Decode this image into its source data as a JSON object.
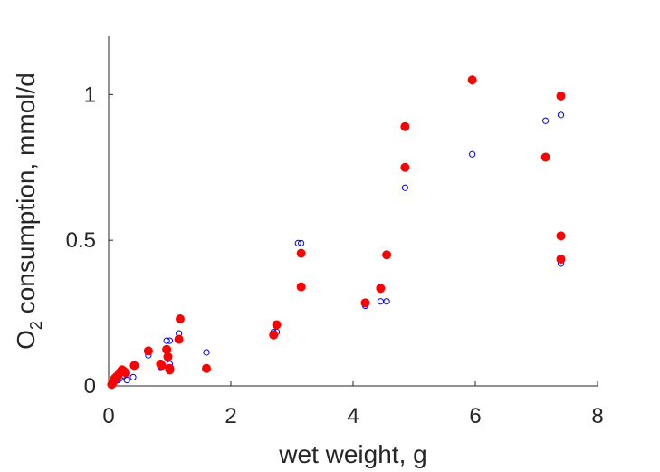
{
  "chart_data": {
    "type": "scatter",
    "xlabel": "wet weight, g",
    "ylabel": {
      "main": "O",
      "subscript": "2",
      "rest": " consumption, mmol/d"
    },
    "xlim": [
      0,
      8
    ],
    "ylim": [
      0,
      1.2
    ],
    "xticks": [
      0,
      2,
      4,
      6,
      8
    ],
    "xtick_labels": [
      "0",
      "2",
      "4",
      "6",
      "8"
    ],
    "yticks": [
      0,
      0.5,
      1
    ],
    "ytick_labels": [
      "0",
      "0.5",
      "1"
    ],
    "grid": false,
    "legend": "none",
    "series": [
      {
        "marker": "open-circle",
        "color": "#0000ff",
        "points": [
          [
            0.08,
            0.01
          ],
          [
            0.1,
            0.015
          ],
          [
            0.12,
            0.02
          ],
          [
            0.15,
            0.02
          ],
          [
            0.18,
            0.025
          ],
          [
            0.22,
            0.03
          ],
          [
            0.25,
            0.035
          ],
          [
            0.3,
            0.02
          ],
          [
            0.4,
            0.03
          ],
          [
            0.65,
            0.105
          ],
          [
            0.85,
            0.065
          ],
          [
            0.95,
            0.155
          ],
          [
            1.0,
            0.155
          ],
          [
            1.0,
            0.075
          ],
          [
            1.15,
            0.18
          ],
          [
            1.6,
            0.115
          ],
          [
            2.7,
            0.185
          ],
          [
            2.75,
            0.185
          ],
          [
            3.1,
            0.49
          ],
          [
            3.15,
            0.49
          ],
          [
            4.2,
            0.275
          ],
          [
            4.45,
            0.29
          ],
          [
            4.55,
            0.29
          ],
          [
            4.85,
            0.68
          ],
          [
            5.95,
            0.795
          ],
          [
            7.15,
            0.91
          ],
          [
            7.4,
            0.93
          ],
          [
            7.4,
            0.42
          ]
        ]
      },
      {
        "marker": "filled-circle",
        "color": "#ff0000",
        "points": [
          [
            0.05,
            0.005
          ],
          [
            0.08,
            0.015
          ],
          [
            0.1,
            0.025
          ],
          [
            0.12,
            0.03
          ],
          [
            0.15,
            0.035
          ],
          [
            0.18,
            0.045
          ],
          [
            0.22,
            0.055
          ],
          [
            0.25,
            0.05
          ],
          [
            0.28,
            0.045
          ],
          [
            0.42,
            0.07
          ],
          [
            0.65,
            0.12
          ],
          [
            0.85,
            0.075
          ],
          [
            0.87,
            0.07
          ],
          [
            0.95,
            0.125
          ],
          [
            0.97,
            0.1
          ],
          [
            1.0,
            0.06
          ],
          [
            1.0,
            0.055
          ],
          [
            1.15,
            0.16
          ],
          [
            1.17,
            0.23
          ],
          [
            1.6,
            0.06
          ],
          [
            2.7,
            0.175
          ],
          [
            2.75,
            0.21
          ],
          [
            3.15,
            0.34
          ],
          [
            3.15,
            0.455
          ],
          [
            4.2,
            0.285
          ],
          [
            4.45,
            0.335
          ],
          [
            4.55,
            0.45
          ],
          [
            4.85,
            0.89
          ],
          [
            4.85,
            0.75
          ],
          [
            5.95,
            1.05
          ],
          [
            7.15,
            0.785
          ],
          [
            7.4,
            0.995
          ],
          [
            7.4,
            0.515
          ],
          [
            7.4,
            0.435
          ]
        ]
      }
    ]
  }
}
